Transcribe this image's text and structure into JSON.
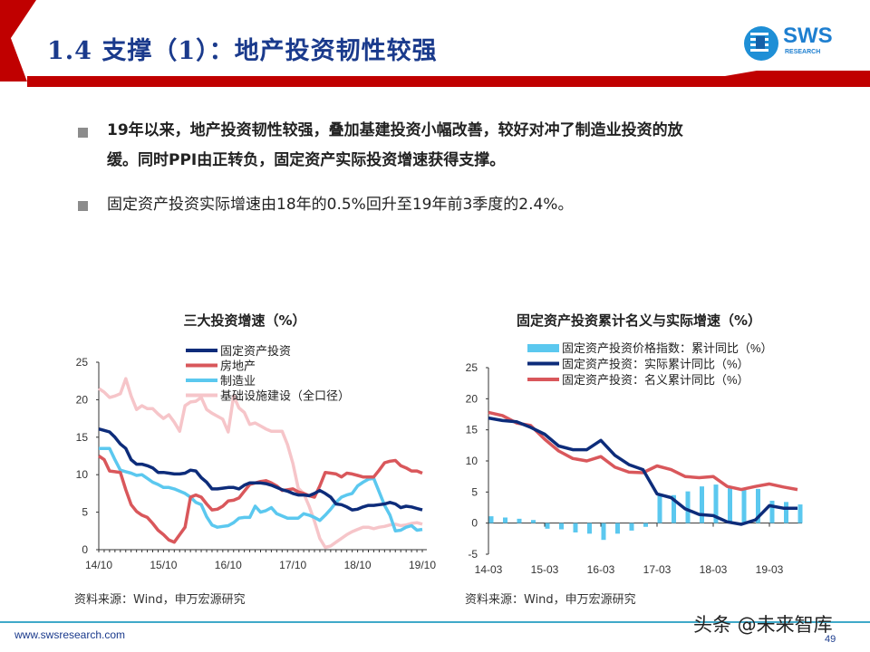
{
  "header": {
    "title": "1.4 支撑（1）：地产投资韧性较强",
    "logo_text": "SWS",
    "logo_sub": "RESEARCH",
    "accent": "#c00000",
    "title_color": "#1a3a8c"
  },
  "bullets": [
    {
      "line1": "19年以来，地产投资韧性较强，叠加基建投资小幅改善，较好对冲了制造业投资的放",
      "line2": "缓。同时PPI由正转负，固定资产实际投资增速获得支撑。"
    },
    {
      "line1": "固定资产投资实际增速由18年的0.5%回升至19年前3季度的2.4%。"
    }
  ],
  "chart_data": [
    {
      "type": "line",
      "title": "三大投资增速（%）",
      "ylim": [
        0,
        25
      ],
      "yticks": [
        "0",
        "5",
        "10",
        "15",
        "20",
        "25"
      ],
      "xticks": [
        "14/10",
        "15/10",
        "16/10",
        "17/10",
        "18/10",
        "19/10"
      ],
      "x_range": [
        "14/10",
        "19/10"
      ],
      "legend_position": "top",
      "grid": false,
      "series": [
        {
          "name": "固定资产投资",
          "color": "#0d2c7a",
          "values": [
            16.1,
            15.9,
            15.7,
            15.0,
            14.1,
            13.5,
            12.0,
            11.4,
            11.4,
            11.2,
            10.9,
            10.3,
            10.3,
            10.2,
            10.1,
            10.1,
            10.2,
            10.6,
            10.5,
            9.6,
            9.0,
            8.1,
            8.1,
            8.2,
            8.3,
            8.3,
            8.1,
            8.6,
            8.9,
            8.9,
            8.9,
            8.8,
            8.6,
            8.3,
            8.0,
            7.8,
            7.5,
            7.3,
            7.3,
            7.2,
            7.5,
            7.9,
            7.5,
            7.0,
            6.1,
            6.0,
            5.7,
            5.3,
            5.4,
            5.7,
            5.9,
            5.9,
            6.0,
            6.1,
            6.3,
            6.1,
            5.6,
            5.8,
            5.7,
            5.5,
            5.3
          ]
        },
        {
          "name": "房地产",
          "color": "#d9575b",
          "values": [
            12.5,
            12.0,
            10.5,
            10.4,
            10.3,
            8.0,
            6.0,
            5.1,
            4.6,
            4.3,
            3.5,
            2.6,
            2.0,
            1.3,
            1.0,
            2.0,
            3.0,
            7.0,
            7.3,
            7.0,
            6.1,
            5.3,
            5.4,
            5.8,
            6.5,
            6.6,
            6.9,
            7.8,
            8.7,
            8.9,
            9.1,
            9.2,
            8.9,
            8.5,
            7.9,
            8.0,
            8.1,
            7.7,
            7.5,
            7.2,
            7.0,
            8.5,
            10.3,
            10.2,
            10.1,
            9.7,
            10.2,
            10.1,
            9.9,
            9.7,
            9.7,
            9.7,
            10.6,
            11.6,
            11.8,
            11.9,
            11.2,
            10.9,
            10.5,
            10.5,
            10.2
          ]
        },
        {
          "name": "制造业",
          "color": "#5bc8ef",
          "values": [
            13.5,
            13.5,
            13.5,
            12.0,
            10.6,
            10.4,
            10.2,
            9.9,
            10.0,
            9.5,
            9.0,
            8.7,
            8.3,
            8.3,
            8.1,
            7.8,
            7.5,
            7.0,
            6.3,
            6.0,
            4.4,
            3.3,
            3.0,
            3.1,
            3.2,
            3.6,
            4.2,
            4.3,
            4.3,
            5.8,
            5.0,
            5.2,
            5.6,
            4.8,
            4.5,
            4.2,
            4.2,
            4.2,
            4.8,
            4.6,
            4.3,
            3.9,
            4.6,
            5.4,
            6.3,
            7.0,
            7.3,
            7.5,
            8.5,
            9.0,
            9.4,
            9.5,
            7.7,
            5.9,
            4.6,
            2.5,
            2.6,
            3.0,
            3.2,
            2.6,
            2.7
          ]
        },
        {
          "name": "基础设施建设（全口径）",
          "color": "#f6c5c9",
          "values": [
            21.5,
            21.0,
            20.3,
            20.5,
            20.8,
            22.8,
            20.5,
            18.7,
            19.2,
            18.8,
            18.8,
            18.1,
            17.5,
            18.0,
            17.0,
            15.8,
            19.2,
            19.7,
            19.8,
            20.3,
            18.7,
            18.2,
            17.8,
            17.4,
            15.7,
            20.5,
            18.9,
            18.3,
            16.7,
            16.9,
            16.5,
            16.1,
            15.8,
            15.8,
            15.8,
            14.0,
            11.5,
            8.2,
            7.5,
            5.8,
            3.8,
            1.5,
            0.3,
            0.5,
            1.0,
            1.5,
            2.0,
            2.4,
            2.7,
            3.0,
            3.0,
            2.8,
            3.0,
            3.1,
            3.3,
            3.4,
            3.2,
            3.3,
            3.5,
            3.6,
            3.4
          ]
        }
      ]
    },
    {
      "type": "bar+line",
      "title": "固定资产投资累计名义与实际增速（%）",
      "ylim": [
        -5,
        25
      ],
      "yticks": [
        "-5",
        "0",
        "5",
        "10",
        "15",
        "20",
        "25"
      ],
      "xticks": [
        "14-03",
        "15-03",
        "16-03",
        "17-03",
        "18-03",
        "19-03"
      ],
      "x": [
        "14-03",
        "14-06",
        "14-09",
        "14-12",
        "15-03",
        "15-06",
        "15-09",
        "15-12",
        "16-03",
        "16-06",
        "16-09",
        "16-12",
        "17-03",
        "17-06",
        "17-09",
        "17-12",
        "18-03",
        "18-06",
        "18-09",
        "18-12",
        "19-03",
        "19-06",
        "19-09"
      ],
      "legend_position": "top",
      "grid": false,
      "series": [
        {
          "name": "固定资产投资价格指数：累计同比（%）",
          "kind": "bar",
          "color": "#5bc8ef",
          "values": [
            1.1,
            0.9,
            0.7,
            0.5,
            -0.9,
            -1.0,
            -1.5,
            -1.7,
            -2.7,
            -1.7,
            -1.2,
            -0.6,
            4.7,
            4.5,
            5.1,
            5.9,
            6.2,
            5.7,
            5.5,
            5.5,
            3.6,
            3.4,
            3.0
          ]
        },
        {
          "name": "固定资产投资：实际累计同比（%）",
          "kind": "line",
          "color": "#0d2c7a",
          "values": [
            16.9,
            16.5,
            16.3,
            15.4,
            14.3,
            12.4,
            11.8,
            11.8,
            13.3,
            10.9,
            9.4,
            8.6,
            4.7,
            4.1,
            2.3,
            1.4,
            1.2,
            0.2,
            -0.2,
            0.5,
            2.8,
            2.4,
            2.4
          ]
        },
        {
          "name": "固定资产投资：名义累计同比（%）",
          "kind": "line",
          "color": "#d9575b",
          "values": [
            17.8,
            17.3,
            16.1,
            15.7,
            13.5,
            11.6,
            10.4,
            10.0,
            10.7,
            9.0,
            8.2,
            8.1,
            9.2,
            8.6,
            7.5,
            7.3,
            7.5,
            5.9,
            5.4,
            5.9,
            6.3,
            5.8,
            5.4
          ]
        }
      ]
    }
  ],
  "sources": [
    "资料来源：Wind，申万宏源研究",
    "资料来源：Wind，申万宏源研究"
  ],
  "footer": {
    "url": "www.swsresearch.com",
    "page": "49",
    "watermark": "头条 @未来智库",
    "line_color": "#3fa9c9"
  }
}
